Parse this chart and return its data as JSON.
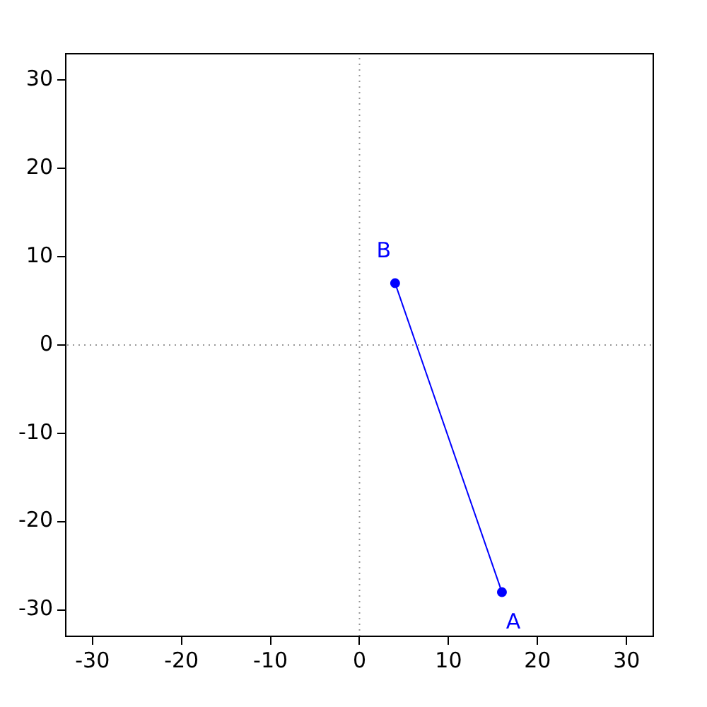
{
  "chart_data": {
    "type": "line",
    "x": [
      16,
      4
    ],
    "series": [
      {
        "color": "#0000ff",
        "values": [
          -28,
          7
        ]
      }
    ],
    "xlim": [
      -33,
      33
    ],
    "xticks": [
      -30,
      -20,
      -10,
      0,
      10,
      20,
      30
    ],
    "ylim": [
      -33,
      33
    ],
    "yticks": [
      -30,
      -20,
      -10,
      0,
      10,
      20,
      30
    ],
    "marker": "circle",
    "line_style": "solid",
    "grid": false,
    "legend": false,
    "ref_lines": [
      {
        "axis": "x",
        "value": 0,
        "color": "#999999",
        "line_style": "dotted"
      },
      {
        "axis": "y",
        "value": 0,
        "color": "#999999",
        "line_style": "dotted"
      }
    ],
    "annotations": [
      {
        "text": "A",
        "x": 16,
        "y": -28
      },
      {
        "text": "B",
        "x": 4,
        "y": 7
      }
    ]
  }
}
